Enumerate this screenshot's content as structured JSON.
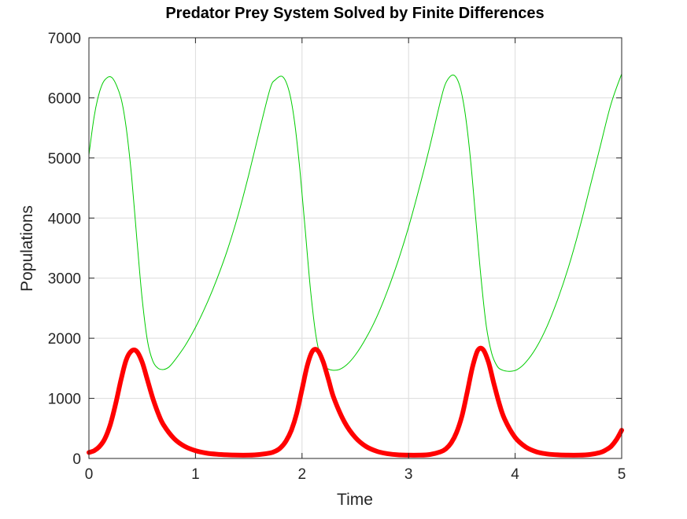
{
  "chart_data": {
    "type": "line",
    "title": "Predator Prey System Solved by Finite Differences",
    "xlabel": "Time",
    "ylabel": "Populations",
    "xlim": [
      0,
      5
    ],
    "ylim": [
      0,
      7000
    ],
    "xticks": [
      "0",
      "1",
      "2",
      "3",
      "4",
      "5"
    ],
    "yticks": [
      "0",
      "1000",
      "2000",
      "3000",
      "4000",
      "5000",
      "6000",
      "7000"
    ],
    "grid": true,
    "legend": "none",
    "series": [
      {
        "color": "#00cc00",
        "line_style": "thin",
        "x": [
          0,
          0.05,
          0.1,
          0.15,
          0.22,
          0.3,
          0.35,
          0.4,
          0.45,
          0.5,
          0.55,
          0.6,
          0.65,
          0.7,
          0.75,
          0.8,
          0.9,
          1.0,
          1.1,
          1.2,
          1.3,
          1.4,
          1.5,
          1.6,
          1.7,
          1.75,
          1.82,
          1.88,
          1.93,
          1.98,
          2.03,
          2.08,
          2.13,
          2.18,
          2.23,
          2.28,
          2.35,
          2.42,
          2.5,
          2.6,
          2.7,
          2.8,
          2.9,
          3.0,
          3.1,
          3.2,
          3.3,
          3.35,
          3.42,
          3.48,
          3.53,
          3.58,
          3.63,
          3.68,
          3.73,
          3.78,
          3.83,
          3.88,
          3.95,
          4.02,
          4.1,
          4.2,
          4.3,
          4.4,
          4.5,
          4.6,
          4.7,
          4.8,
          4.9,
          5.0
        ],
        "values": [
          5050,
          5700,
          6100,
          6300,
          6330,
          6000,
          5500,
          4700,
          3650,
          2650,
          1950,
          1620,
          1500,
          1480,
          1520,
          1620,
          1870,
          2180,
          2550,
          2980,
          3470,
          4050,
          4720,
          5450,
          6150,
          6300,
          6350,
          6100,
          5600,
          4800,
          3800,
          2800,
          2050,
          1650,
          1510,
          1470,
          1480,
          1560,
          1720,
          2000,
          2350,
          2780,
          3280,
          3850,
          4500,
          5200,
          5950,
          6250,
          6380,
          6200,
          5750,
          5000,
          4000,
          3000,
          2200,
          1750,
          1540,
          1470,
          1450,
          1480,
          1600,
          1850,
          2200,
          2650,
          3180,
          3800,
          4500,
          5200,
          5900,
          6400
        ]
      },
      {
        "color": "#ff0000",
        "line_style": "thick",
        "x": [
          0,
          0.05,
          0.1,
          0.15,
          0.2,
          0.25,
          0.3,
          0.35,
          0.4,
          0.45,
          0.5,
          0.55,
          0.6,
          0.65,
          0.7,
          0.8,
          0.9,
          1.0,
          1.1,
          1.2,
          1.3,
          1.4,
          1.5,
          1.6,
          1.7,
          1.75,
          1.8,
          1.85,
          1.9,
          1.95,
          2.0,
          2.05,
          2.1,
          2.15,
          2.2,
          2.25,
          2.3,
          2.4,
          2.5,
          2.6,
          2.7,
          2.8,
          2.9,
          3.0,
          3.1,
          3.2,
          3.3,
          3.35,
          3.4,
          3.45,
          3.5,
          3.55,
          3.6,
          3.65,
          3.7,
          3.75,
          3.8,
          3.85,
          3.9,
          4.0,
          4.1,
          4.2,
          4.3,
          4.4,
          4.5,
          4.6,
          4.7,
          4.8,
          4.85,
          4.9,
          4.95,
          5.0
        ],
        "values": [
          100,
          130,
          200,
          330,
          560,
          900,
          1300,
          1640,
          1790,
          1780,
          1600,
          1300,
          1000,
          750,
          560,
          330,
          200,
          130,
          90,
          70,
          60,
          55,
          55,
          65,
          90,
          120,
          180,
          290,
          470,
          750,
          1150,
          1550,
          1790,
          1790,
          1600,
          1300,
          1000,
          600,
          350,
          200,
          120,
          80,
          60,
          55,
          55,
          65,
          110,
          160,
          260,
          430,
          700,
          1100,
          1520,
          1800,
          1810,
          1600,
          1250,
          920,
          660,
          350,
          190,
          110,
          75,
          60,
          55,
          55,
          65,
          100,
          140,
          200,
          310,
          470
        ]
      }
    ]
  }
}
